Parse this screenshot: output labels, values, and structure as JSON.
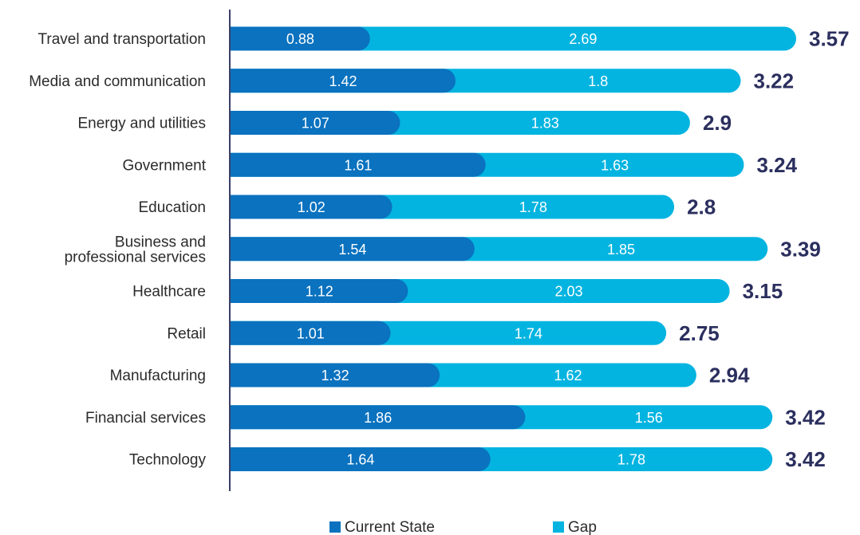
{
  "colors": {
    "current": "#0a72bf",
    "gap": "#04b4e0",
    "axis": "#3a3f66",
    "total": "#2b2f5e"
  },
  "chart_data": {
    "type": "bar",
    "orientation": "horizontal",
    "stacked": true,
    "title": "",
    "xlabel": "",
    "ylabel": "",
    "xlim": [
      0,
      3.57
    ],
    "grid": false,
    "legend": "bottom",
    "categories": [
      [
        "Travel and transportation"
      ],
      [
        "Media and communication"
      ],
      [
        "Energy and utilities"
      ],
      [
        "Government"
      ],
      [
        "Education"
      ],
      [
        "Business and",
        "professional services"
      ],
      [
        "Healthcare"
      ],
      [
        "Retail"
      ],
      [
        "Manufacturing"
      ],
      [
        "Financial services"
      ],
      [
        "Technology"
      ]
    ],
    "series": [
      {
        "name": "Current State",
        "values": [
          0.88,
          1.42,
          1.07,
          1.61,
          1.02,
          1.54,
          1.12,
          1.01,
          1.32,
          1.86,
          1.64
        ]
      },
      {
        "name": "Gap",
        "values": [
          2.69,
          1.8,
          1.83,
          1.63,
          1.78,
          1.85,
          2.03,
          1.74,
          1.62,
          1.56,
          1.78
        ]
      }
    ],
    "totals": [
      3.57,
      3.22,
      2.9,
      3.24,
      2.8,
      3.39,
      3.15,
      2.75,
      2.94,
      3.42,
      3.42
    ]
  }
}
